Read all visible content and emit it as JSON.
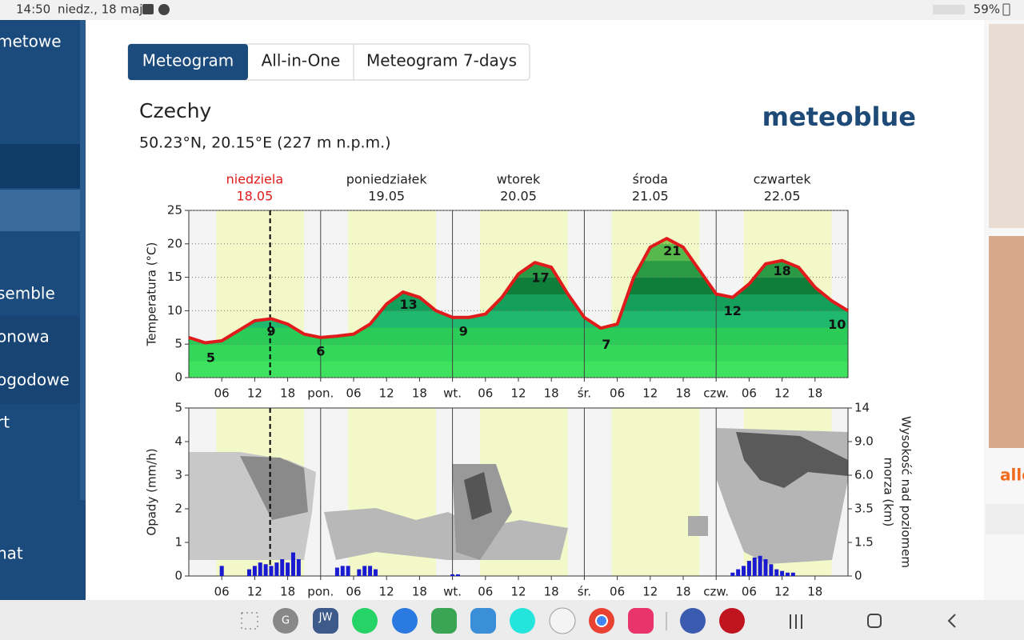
{
  "status_bar": {
    "time": "14:50",
    "date": "niedz., 18 maj",
    "battery": "59%"
  },
  "sidebar": [
    "metowe",
    "semble",
    "onowa",
    "ogodowe",
    "rt",
    "nat"
  ],
  "tabs": [
    "Meteogram",
    "All-in-One",
    "Meteogram 7-days"
  ],
  "location": {
    "name": "Czechy",
    "coords": "50.23°N, 20.15°E (227 m n.p.m.)"
  },
  "logo": "meteoblue",
  "ad_text": "alle",
  "dock": [
    "G",
    "JW"
  ],
  "days": [
    {
      "name": "niedziela",
      "date": "18.05"
    },
    {
      "name": "poniedziałek",
      "date": "19.05"
    },
    {
      "name": "wtorek",
      "date": "20.05"
    },
    {
      "name": "środa",
      "date": "21.05"
    },
    {
      "name": "czwartek",
      "date": "22.05"
    }
  ],
  "chart_data": [
    {
      "type": "line",
      "ylabel": "Temperatura (°C)",
      "color": "#e01b1b",
      "grid": true,
      "now": 14.8,
      "xlim": [
        0,
        120
      ],
      "ylim": [
        0,
        25
      ],
      "yticks": [
        0,
        5,
        10,
        15,
        20,
        25
      ],
      "xticks": [
        {
          "value": 6,
          "label": "06"
        },
        {
          "value": 12,
          "label": "12"
        },
        {
          "value": 18,
          "label": "18"
        },
        {
          "value": 24,
          "label": "pon."
        },
        {
          "value": 30,
          "label": "06"
        },
        {
          "value": 36,
          "label": "12"
        },
        {
          "value": 42,
          "label": "18"
        },
        {
          "value": 48,
          "label": "wt."
        },
        {
          "value": 54,
          "label": "06"
        },
        {
          "value": 60,
          "label": "12"
        },
        {
          "value": 66,
          "label": "18"
        },
        {
          "value": 72,
          "label": "śr."
        },
        {
          "value": 78,
          "label": "06"
        },
        {
          "value": 84,
          "label": "12"
        },
        {
          "value": 90,
          "label": "18"
        },
        {
          "value": 96,
          "label": "czw."
        },
        {
          "value": 102,
          "label": "06"
        },
        {
          "value": 108,
          "label": "12"
        },
        {
          "value": 114,
          "label": "18"
        }
      ],
      "x": [
        0,
        3,
        6,
        9,
        12,
        15,
        18,
        21,
        24,
        27,
        30,
        33,
        36,
        39,
        42,
        45,
        48,
        51,
        54,
        57,
        60,
        63,
        66,
        69,
        72,
        75,
        78,
        81,
        84,
        87,
        90,
        93,
        96,
        99,
        102,
        105,
        108,
        111,
        114,
        117,
        120
      ],
      "values": [
        6,
        5.2,
        5.5,
        7,
        8.5,
        8.8,
        8,
        6.5,
        6,
        6.2,
        6.5,
        8,
        11,
        12.8,
        12,
        10,
        9,
        9,
        9.5,
        12,
        15.5,
        17.2,
        16.5,
        12.5,
        9,
        7.4,
        8,
        15,
        19.5,
        20.8,
        19.5,
        16,
        12.5,
        12,
        14,
        17,
        17.5,
        16.5,
        13.5,
        11.5,
        10
      ],
      "annotations": [
        {
          "x": 4,
          "value": 5
        },
        {
          "x": 15,
          "value": 9
        },
        {
          "x": 24,
          "value": 6
        },
        {
          "x": 40,
          "value": 13
        },
        {
          "x": 50,
          "value": 9
        },
        {
          "x": 64,
          "value": 17
        },
        {
          "x": 76,
          "value": 7
        },
        {
          "x": 88,
          "value": 21
        },
        {
          "x": 99,
          "value": 12
        },
        {
          "x": 108,
          "value": 18
        },
        {
          "x": 118,
          "value": 10
        }
      ]
    },
    {
      "type": "bar",
      "ylabel": "Opady (mm/h)",
      "y2label": [
        "Wysokość nad poziomem",
        "morza (km)"
      ],
      "color": "#1a1ad0",
      "now": 14.8,
      "xlim": [
        0,
        120
      ],
      "ylim": [
        0,
        5
      ],
      "yticks": [
        0,
        1,
        2,
        3,
        4,
        5
      ],
      "y2lim": [
        0,
        14
      ],
      "y2ticks": [
        0,
        1.5,
        3.5,
        {
          "value": 6,
          "label": "6.0"
        },
        {
          "value": 9,
          "label": "9.0"
        },
        14
      ],
      "xticks": [
        {
          "value": 6,
          "label": "06"
        },
        {
          "value": 12,
          "label": "12"
        },
        {
          "value": 18,
          "label": "18"
        },
        {
          "value": 24,
          "label": "pon."
        },
        {
          "value": 30,
          "label": "06"
        },
        {
          "value": 36,
          "label": "12"
        },
        {
          "value": 42,
          "label": "18"
        },
        {
          "value": 48,
          "label": "wt."
        },
        {
          "value": 54,
          "label": "06"
        },
        {
          "value": 60,
          "label": "12"
        },
        {
          "value": 66,
          "label": "18"
        },
        {
          "value": 72,
          "label": "śr."
        },
        {
          "value": 78,
          "label": "06"
        },
        {
          "value": 84,
          "label": "12"
        },
        {
          "value": 90,
          "label": "18"
        },
        {
          "value": 96,
          "label": "czw."
        },
        {
          "value": 102,
          "label": "06"
        },
        {
          "value": 108,
          "label": "12"
        },
        {
          "value": 114,
          "label": "18"
        }
      ],
      "x": [
        6,
        11,
        12,
        13,
        14,
        15,
        16,
        17,
        18,
        19,
        20,
        27,
        28,
        29,
        31,
        32,
        33,
        34,
        48,
        49,
        99,
        100,
        101,
        102,
        103,
        104,
        105,
        106,
        107,
        108,
        109,
        110
      ],
      "values": [
        0.3,
        0.2,
        0.3,
        0.4,
        0.35,
        0.3,
        0.4,
        0.5,
        0.4,
        0.7,
        0.5,
        0.25,
        0.3,
        0.3,
        0.2,
        0.3,
        0.3,
        0.2,
        0.05,
        0.05,
        0.1,
        0.2,
        0.3,
        0.45,
        0.55,
        0.6,
        0.5,
        0.35,
        0.2,
        0.15,
        0.1,
        0.1
      ]
    }
  ]
}
